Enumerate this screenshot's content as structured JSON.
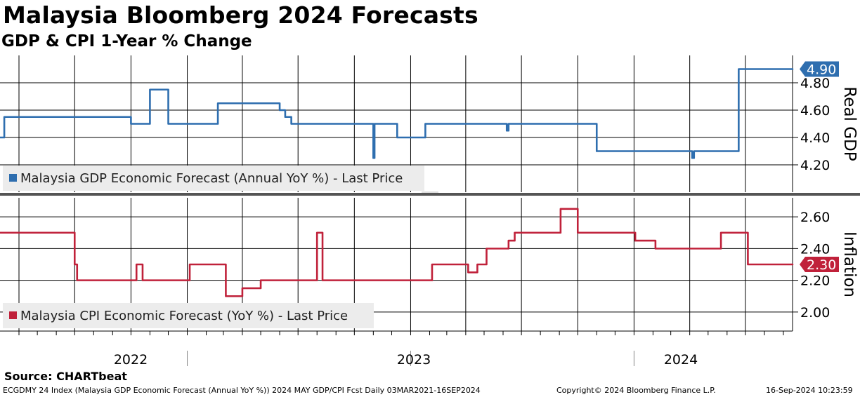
{
  "header": {
    "title": "Malaysia Bloomberg 2024 Forecasts",
    "subtitle": "GDP & CPI 1-Year % Change"
  },
  "footer": {
    "source": "Source: CHARTbeat",
    "ticker_info": "ECGDMY 24 Index (Malaysia GDP Economic Forecast (Annual YoY %)) 2024 MAY GDP/CPI Fcst  Daily 03MAR2021-16SEP2024",
    "copyright": "Copyright© 2024 Bloomberg Finance L.P.",
    "timestamp": "16-Sep-2024 10:23:59"
  },
  "colors": {
    "gdp": "#2e6eaf",
    "cpi": "#c0213a",
    "legend_bg": "#ececec",
    "grid": "#000000"
  },
  "chart_data": [
    {
      "type": "line",
      "ylabel": "Real GDP",
      "ylim": [
        4.0,
        5.0
      ],
      "yticks": [
        "4.20",
        "4.40",
        "4.60",
        "4.80"
      ],
      "last_value": "4.90",
      "legend": "Malaysia GDP Economic Forecast (Annual YoY %) - Last Price",
      "legend_position": "bottom-left",
      "grid": true,
      "series": [
        {
          "name": "Malaysia GDP Economic Forecast (Annual YoY %) - Last Price",
          "x": [
            "2021-03-01",
            "2021-03-08",
            "2021-06-01",
            "2021-10-01",
            "2021-10-25",
            "2021-11-01",
            "2021-12-01",
            "2022-01-01",
            "2022-01-24",
            "2022-02-20",
            "2022-03-01",
            "2022-06-01",
            "2022-06-10",
            "2022-06-20",
            "2022-07-01",
            "2022-11-01",
            "2022-11-03",
            "2022-11-06",
            "2022-12-10",
            "2023-01-05",
            "2023-01-10",
            "2023-01-25",
            "2023-02-05",
            "2023-03-01",
            "2023-06-01",
            "2023-06-07",
            "2023-06-10",
            "2023-11-01",
            "2023-11-03",
            "2024-04-01",
            "2024-04-05",
            "2024-04-08",
            "2024-04-15",
            "2024-06-20",
            "2024-06-20",
            "2024-09-16"
          ],
          "y": [
            4.4,
            4.55,
            4.55,
            4.5,
            4.5,
            4.75,
            4.5,
            4.5,
            4.5,
            4.65,
            4.65,
            4.6,
            4.55,
            4.5,
            4.5,
            4.25,
            4.5,
            4.5,
            4.4,
            4.4,
            4.4,
            4.5,
            4.5,
            4.5,
            4.5,
            4.45,
            4.5,
            4.3,
            4.3,
            4.3,
            4.25,
            4.3,
            4.3,
            4.8,
            4.9,
            4.9
          ]
        }
      ]
    },
    {
      "type": "line",
      "ylabel": "Inflation",
      "ylim": [
        1.88,
        2.72
      ],
      "yticks": [
        "2.00",
        "2.20",
        "2.40",
        "2.60"
      ],
      "last_value": "2.30",
      "legend": "Malaysia CPI Economic Forecast (YoY %) - Last Price",
      "legend_position": "bottom-left",
      "grid": true,
      "x_ticks": [
        "2022",
        "2023",
        "2024"
      ],
      "series": [
        {
          "name": "Malaysia CPI Economic Forecast (YoY %) - Last Price",
          "x": [
            "2021-03-01",
            "2021-06-15",
            "2021-07-01",
            "2021-07-05",
            "2021-10-01",
            "2021-10-10",
            "2021-10-20",
            "2022-01-01",
            "2022-01-05",
            "2022-03-01",
            "2022-03-05",
            "2022-04-01",
            "2022-05-01",
            "2022-05-15",
            "2022-08-01",
            "2022-08-10",
            "2022-08-20",
            "2023-02-01",
            "2023-02-05",
            "2023-02-10",
            "2023-04-01",
            "2023-04-05",
            "2023-04-20",
            "2023-05-05",
            "2023-06-10",
            "2023-06-20",
            "2023-09-01",
            "2023-09-03",
            "2023-10-01",
            "2023-10-05",
            "2024-01-01",
            "2024-01-03",
            "2024-02-01",
            "2024-02-05",
            "2024-05-20",
            "2024-05-22",
            "2024-07-01",
            "2024-07-05",
            "2024-09-16"
          ],
          "y": [
            2.5,
            2.5,
            2.3,
            2.2,
            2.2,
            2.3,
            2.2,
            2.2,
            2.3,
            2.3,
            2.1,
            2.15,
            2.2,
            2.2,
            2.5,
            2.2,
            2.2,
            2.2,
            2.3,
            2.3,
            2.3,
            2.25,
            2.3,
            2.4,
            2.45,
            2.5,
            2.5,
            2.65,
            2.5,
            2.5,
            2.5,
            2.45,
            2.45,
            2.4,
            2.4,
            2.5,
            2.5,
            2.3,
            2.3
          ]
        }
      ]
    }
  ]
}
